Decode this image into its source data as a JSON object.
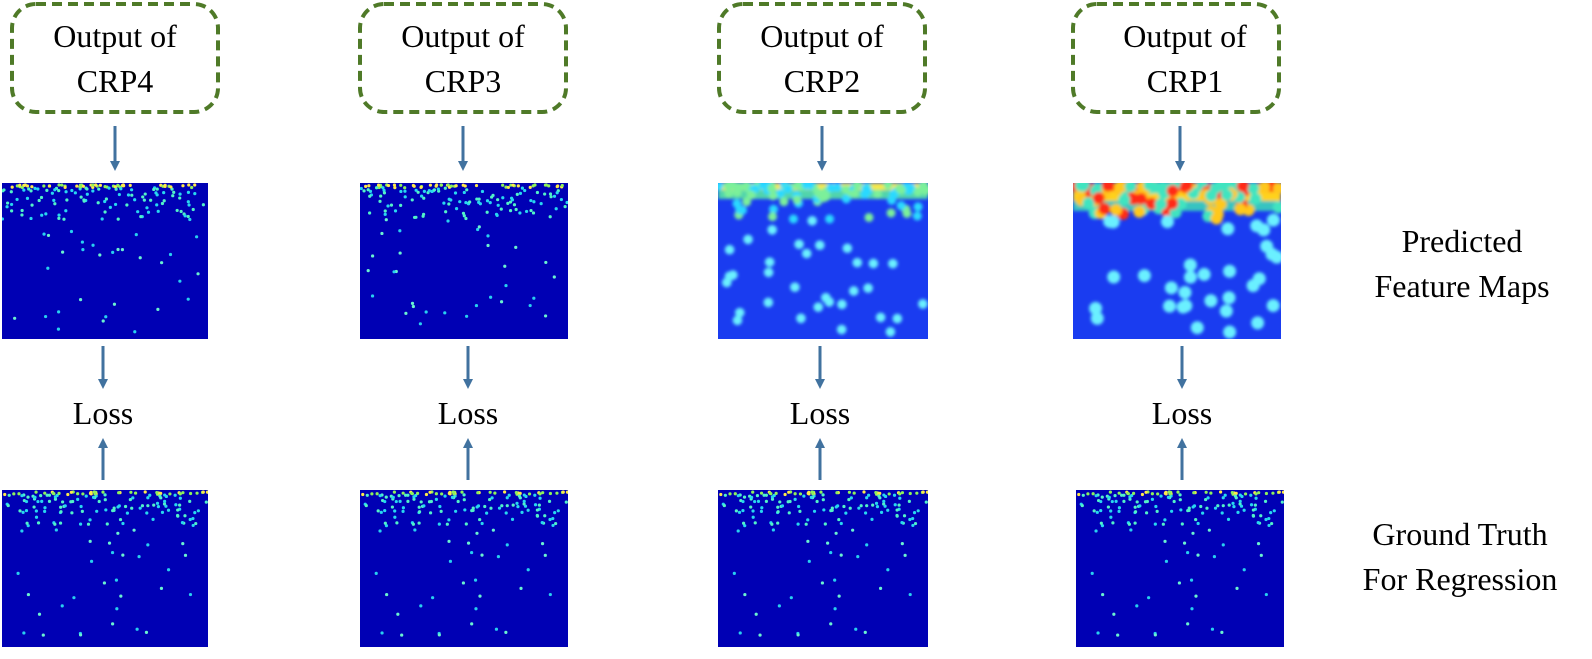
{
  "colors": {
    "box_border": "#4f7a28",
    "arrow": "#41729f",
    "map_background": "#0000b4",
    "map_background_bright": "#1a3cf0",
    "text": "#000000"
  },
  "columns": [
    {
      "box_line1": "Output of",
      "box_line2": "CRP4",
      "loss_label": "Loss",
      "predicted_intensity": "low"
    },
    {
      "box_line1": "Output of",
      "box_line2": "CRP3",
      "loss_label": "Loss",
      "predicted_intensity": "low"
    },
    {
      "box_line1": "Output of",
      "box_line2": "CRP2",
      "loss_label": "Loss",
      "predicted_intensity": "medium"
    },
    {
      "box_line1": "Output of",
      "box_line2": "CRP1",
      "loss_label": "Loss",
      "predicted_intensity": "high"
    }
  ],
  "row_labels": {
    "predicted_line1": "Predicted",
    "predicted_line2": "Feature Maps",
    "ground_truth_line1": "Ground Truth",
    "ground_truth_line2": "For Regression"
  }
}
